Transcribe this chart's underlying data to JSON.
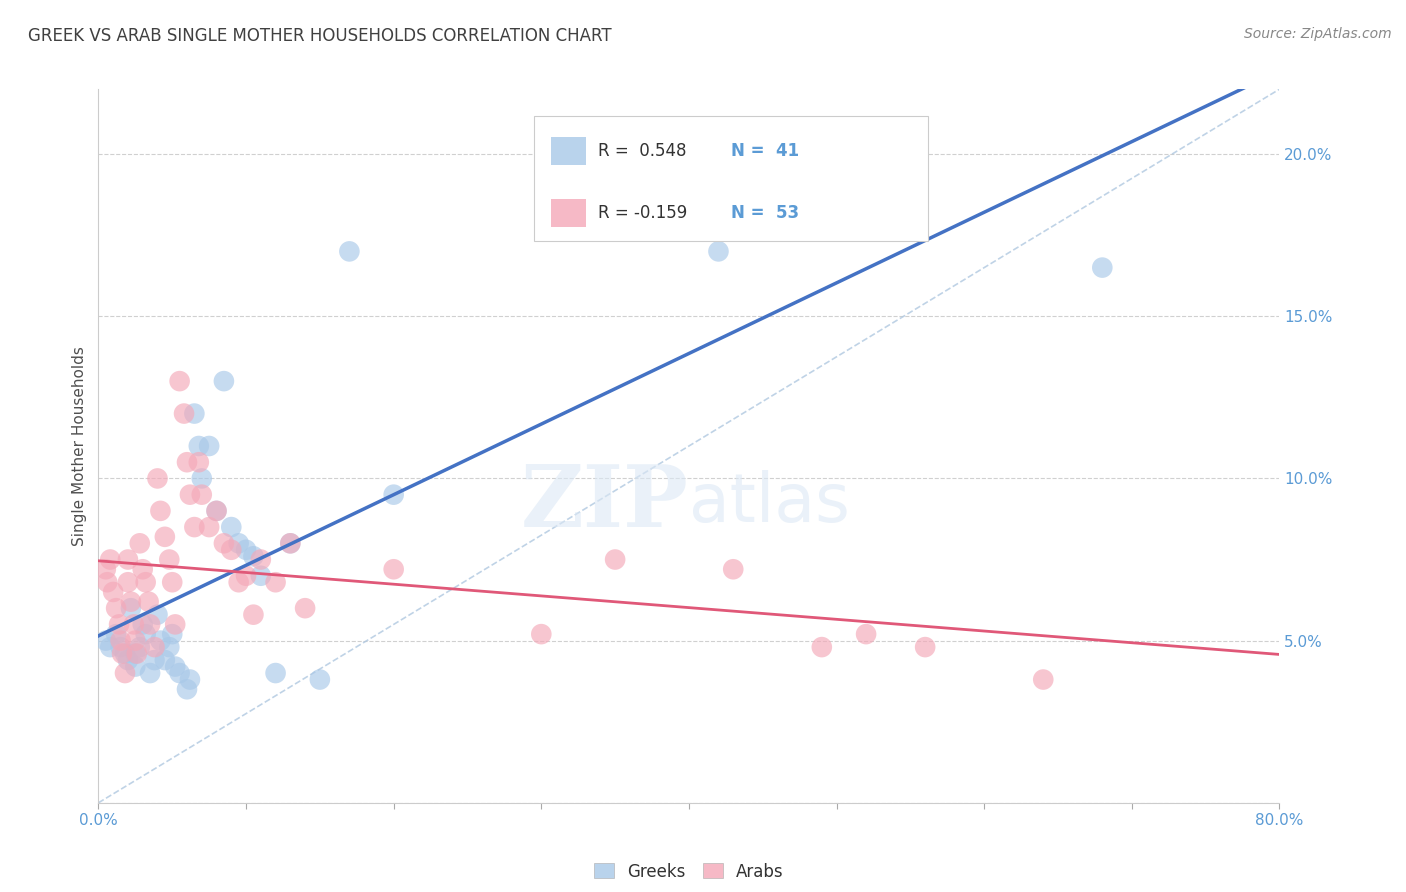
{
  "title": "GREEK VS ARAB SINGLE MOTHER HOUSEHOLDS CORRELATION CHART",
  "source": "Source: ZipAtlas.com",
  "ylabel": "Single Mother Households",
  "xlabel_ticks": [
    "0.0%",
    "",
    "",
    "",
    "",
    "",
    "",
    "",
    "80.0%"
  ],
  "xlabel_vals": [
    0,
    0.1,
    0.2,
    0.3,
    0.4,
    0.5,
    0.6,
    0.7,
    0.8
  ],
  "ylabel_ticks": [
    "",
    "5.0%",
    "10.0%",
    "15.0%",
    "20.0%"
  ],
  "ylabel_vals": [
    0,
    0.05,
    0.1,
    0.15,
    0.2
  ],
  "xlim": [
    0.0,
    0.8
  ],
  "ylim": [
    0.0,
    0.22
  ],
  "legend_blue_r": "R =  0.548",
  "legend_blue_n": "N =  41",
  "legend_pink_r": "R = -0.159",
  "legend_pink_n": "N =  53",
  "legend_labels": [
    "Greeks",
    "Arabs"
  ],
  "blue_color": "#a8c8e8",
  "pink_color": "#f4a8b8",
  "blue_line_color": "#4472c4",
  "pink_line_color": "#e05878",
  "diag_line_color": "#b0c8e0",
  "watermark_zip": "ZIP",
  "watermark_atlas": "atlas",
  "title_color": "#404040",
  "tick_color": "#5b9bd5",
  "grid_color": "#d0d0d0",
  "greeks_x": [
    0.005,
    0.008,
    0.012,
    0.015,
    0.018,
    0.02,
    0.022,
    0.025,
    0.025,
    0.028,
    0.03,
    0.032,
    0.035,
    0.038,
    0.04,
    0.042,
    0.045,
    0.048,
    0.05,
    0.052,
    0.055,
    0.06,
    0.062,
    0.065,
    0.068,
    0.07,
    0.075,
    0.08,
    0.085,
    0.09,
    0.095,
    0.1,
    0.105,
    0.11,
    0.12,
    0.13,
    0.15,
    0.17,
    0.2,
    0.42,
    0.68
  ],
  "greeks_y": [
    0.05,
    0.048,
    0.052,
    0.048,
    0.046,
    0.044,
    0.06,
    0.046,
    0.042,
    0.048,
    0.055,
    0.052,
    0.04,
    0.044,
    0.058,
    0.05,
    0.044,
    0.048,
    0.052,
    0.042,
    0.04,
    0.035,
    0.038,
    0.12,
    0.11,
    0.1,
    0.11,
    0.09,
    0.13,
    0.085,
    0.08,
    0.078,
    0.076,
    0.07,
    0.04,
    0.08,
    0.038,
    0.17,
    0.095,
    0.17,
    0.165
  ],
  "arabs_x": [
    0.005,
    0.006,
    0.008,
    0.01,
    0.012,
    0.014,
    0.015,
    0.016,
    0.018,
    0.02,
    0.02,
    0.022,
    0.024,
    0.025,
    0.026,
    0.028,
    0.03,
    0.032,
    0.034,
    0.035,
    0.038,
    0.04,
    0.042,
    0.045,
    0.048,
    0.05,
    0.052,
    0.055,
    0.058,
    0.06,
    0.062,
    0.065,
    0.068,
    0.07,
    0.075,
    0.08,
    0.085,
    0.09,
    0.095,
    0.1,
    0.105,
    0.11,
    0.12,
    0.13,
    0.14,
    0.2,
    0.3,
    0.35,
    0.43,
    0.49,
    0.52,
    0.56,
    0.64
  ],
  "arabs_y": [
    0.072,
    0.068,
    0.075,
    0.065,
    0.06,
    0.055,
    0.05,
    0.046,
    0.04,
    0.075,
    0.068,
    0.062,
    0.055,
    0.05,
    0.046,
    0.08,
    0.072,
    0.068,
    0.062,
    0.055,
    0.048,
    0.1,
    0.09,
    0.082,
    0.075,
    0.068,
    0.055,
    0.13,
    0.12,
    0.105,
    0.095,
    0.085,
    0.105,
    0.095,
    0.085,
    0.09,
    0.08,
    0.078,
    0.068,
    0.07,
    0.058,
    0.075,
    0.068,
    0.08,
    0.06,
    0.072,
    0.052,
    0.075,
    0.072,
    0.048,
    0.052,
    0.048,
    0.038
  ]
}
